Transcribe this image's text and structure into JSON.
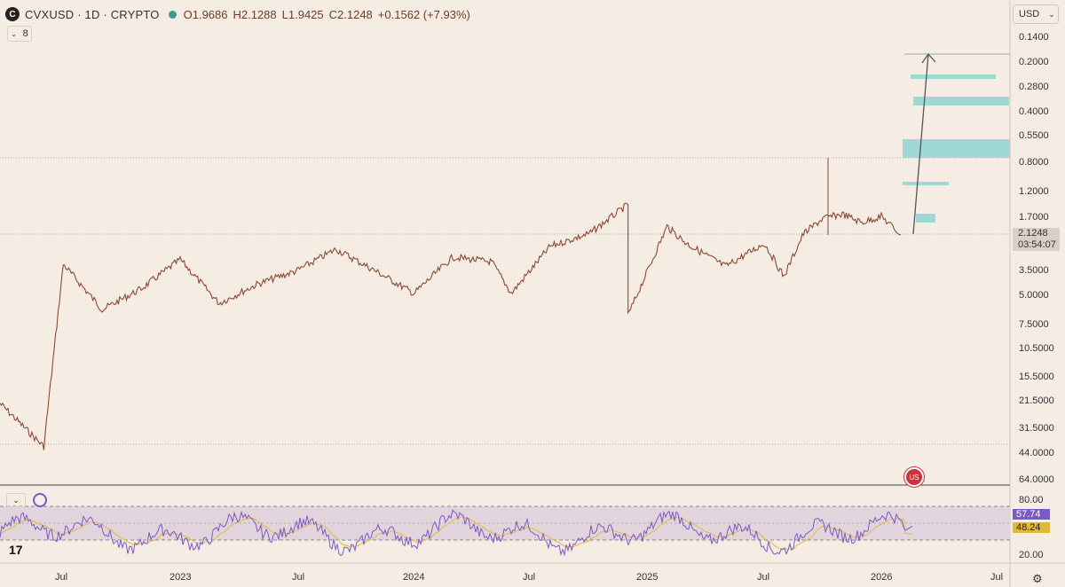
{
  "header": {
    "logo_letter": "C",
    "title": "CVXUSD · 1D · CRYPTO",
    "open": "O1.9686",
    "high": "H2.1288",
    "low": "L1.9425",
    "close": "C2.1248",
    "change": "+0.1562 (+7.93%)",
    "indicators_count": "8"
  },
  "currency": "USD",
  "price_badge": {
    "price": "2.1248",
    "countdown": "03:54:07"
  },
  "rsi": {
    "value1": "57.74",
    "value2": "48.24",
    "value1_color": "#7b59c8",
    "value2_color": "#e0b83a"
  },
  "colors": {
    "background": "#f5ece3",
    "candle": "#8b4a35",
    "zone": "#9fd8d6",
    "rsi_line": "#7b59c8",
    "rsi_ma": "#e0b83a",
    "projection_line": "#555555"
  },
  "chart_data": [
    {
      "type": "line",
      "title": "CVXUSD · 1D · CRYPTO",
      "scale": "log-inverted",
      "y_ticks": [
        "0.1400",
        "0.2000",
        "0.2800",
        "0.4000",
        "0.5500",
        "0.8000",
        "1.2000",
        "1.7000",
        "2.1248",
        "3.5000",
        "5.0000",
        "7.5000",
        "10.5000",
        "15.5000",
        "21.5000",
        "31.5000",
        "44.0000",
        "64.0000"
      ],
      "x_ticks": [
        "Jul",
        "2023",
        "Jul",
        "2024",
        "Jul",
        "2025",
        "Jul",
        "2026",
        "Jul"
      ],
      "series": [
        {
          "x": [
            "2022-05",
            "2022-06",
            "2022-07",
            "2022-09",
            "2022-11",
            "2023-01",
            "2023-03",
            "2023-05",
            "2023-07",
            "2023-09",
            "2023-11",
            "2024-01",
            "2024-03",
            "2024-05",
            "2024-06",
            "2024-08",
            "2024-10",
            "2024-12",
            "2024-12",
            "2025-01",
            "2025-02",
            "2025-03",
            "2025-05",
            "2025-07",
            "2025-08",
            "2025-09",
            "2025-10",
            "2025-11",
            "2025-12",
            "2026-01",
            "2026-02"
          ],
          "values": [
            22,
            40,
            3.2,
            6.0,
            4.5,
            3.0,
            5.5,
            4.2,
            3.5,
            2.6,
            3.5,
            4.8,
            2.9,
            3.1,
            4.8,
            2.5,
            2.1,
            1.4,
            6.5,
            3.5,
            1.9,
            2.4,
            3.3,
            2.4,
            3.8,
            2.1,
            1.7,
            1.6,
            1.8,
            1.65,
            2.1248
          ]
        }
      ],
      "last_price": "2.1248"
    },
    {
      "type": "line",
      "title": "RSI",
      "y_ticks": [
        "80.00",
        "20.00"
      ],
      "series": [
        {
          "name": "RSI",
          "last": 57.74
        },
        {
          "name": "RSI MA",
          "last": 48.24
        }
      ]
    }
  ]
}
